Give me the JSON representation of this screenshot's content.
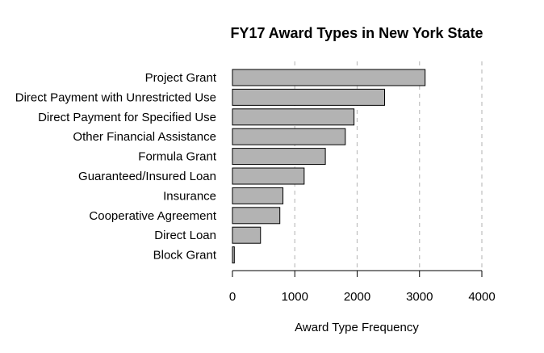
{
  "chart_data": {
    "type": "bar",
    "orientation": "horizontal",
    "title": "FY17 Award Types in New York State",
    "xlabel": "Award Type Frequency",
    "ylabel": "",
    "xlim": [
      0,
      4000
    ],
    "x_ticks": [
      0,
      1000,
      2000,
      3000,
      4000
    ],
    "grid": "vertical dashed at 1000, 2000, 3000, 4000",
    "categories": [
      "Project Grant",
      "Direct Payment with Unrestricted Use",
      "Direct Payment for Specified Use",
      "Other Financial Assistance",
      "Formula Grant",
      "Guaranteed/Insured Loan",
      "Insurance",
      "Cooperative Agreement",
      "Direct Loan",
      "Block Grant"
    ],
    "values": [
      3090,
      2440,
      1950,
      1810,
      1490,
      1150,
      810,
      760,
      450,
      30
    ],
    "colors": {
      "bar_fill": "#b3b3b3",
      "bar_stroke": "#000000",
      "grid": "#bebebe",
      "axis": "#000000"
    }
  }
}
